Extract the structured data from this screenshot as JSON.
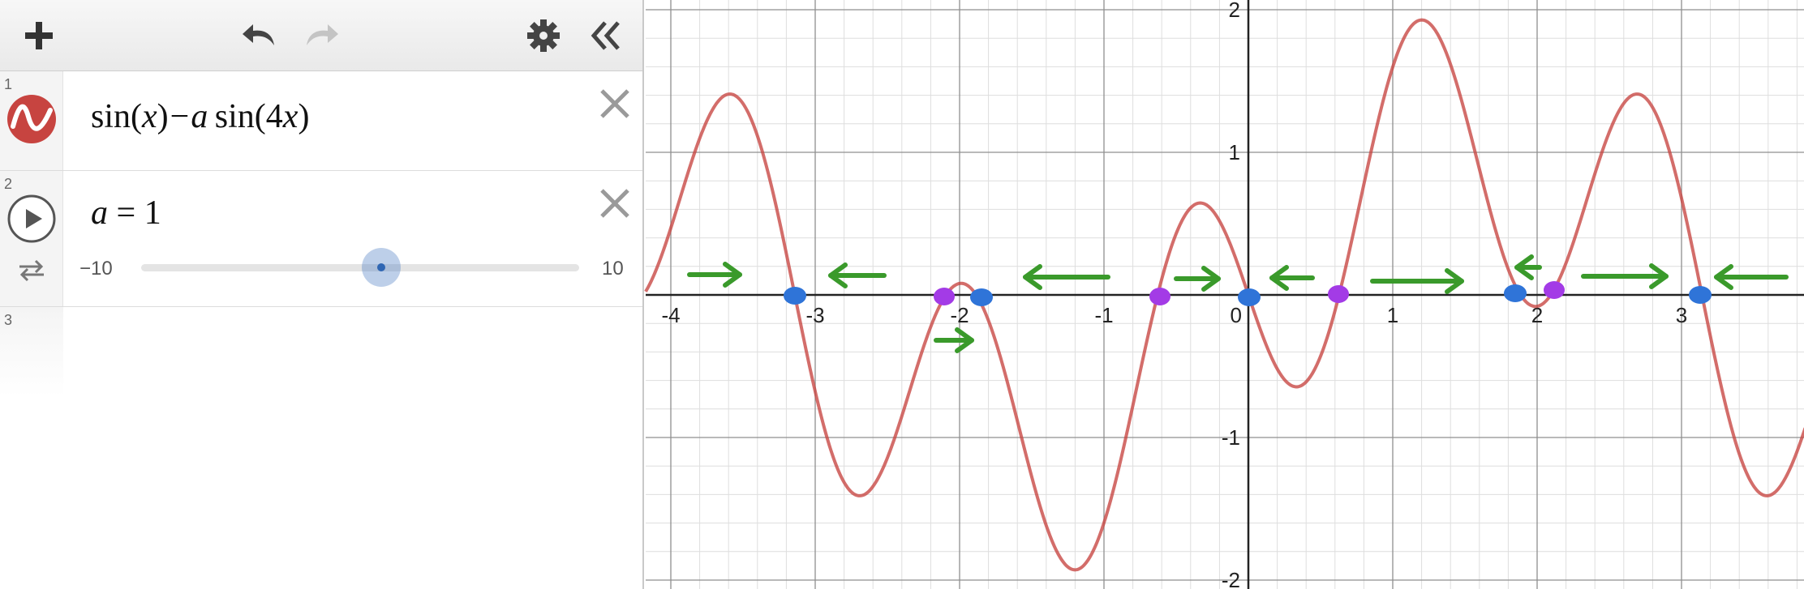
{
  "toolbar": {
    "add_icon": "plus-icon",
    "undo_icon": "undo-icon",
    "redo_icon": "redo-icon",
    "settings_icon": "gear-icon",
    "collapse_icon": "double-chevron-left-icon"
  },
  "expressions": [
    {
      "number": "1",
      "parts": {
        "sin1": "sin",
        "lp1": "(",
        "x1": "x",
        "rp1": ")",
        "minus": "−",
        "a": "a",
        "sin2": "sin",
        "lp2": "(",
        "four": "4",
        "x2": "x",
        "rp2": ")"
      },
      "color": "#c74440",
      "icon": "wave-icon"
    },
    {
      "number": "2",
      "variable": "a",
      "equals": "=",
      "value": "1",
      "slider": {
        "min_label": "−10",
        "max_label": "10",
        "min": -10,
        "max": 10,
        "value": 1
      },
      "play_icon": "play-icon",
      "loop_icon": "loop-icon"
    },
    {
      "number": "3"
    }
  ],
  "graph": {
    "x_ticks": [
      "-4",
      "-3",
      "-2",
      "-1",
      "0",
      "1",
      "2",
      "3"
    ],
    "y_ticks": [
      "2",
      "1",
      "-1",
      "-2"
    ],
    "curve_color": "#c74440",
    "annotation_green": "#3a9a2b",
    "dot_blue": "#2f74d8",
    "dot_purple": "#a33be6"
  }
}
